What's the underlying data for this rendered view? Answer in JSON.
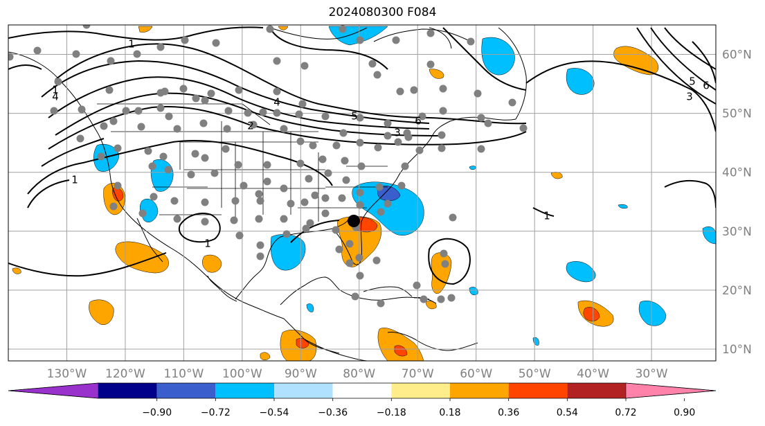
{
  "title": "2024080300 F084",
  "map": {
    "lon_range": [
      -140,
      -19
    ],
    "lat_range": [
      8,
      65
    ],
    "lon_ticks": [
      {
        "lon": -130,
        "label": "130°W"
      },
      {
        "lon": -120,
        "label": "120°W"
      },
      {
        "lon": -110,
        "label": "110°W"
      },
      {
        "lon": -100,
        "label": "100°W"
      },
      {
        "lon": -90,
        "label": "90°W"
      },
      {
        "lon": -80,
        "label": "80°W"
      },
      {
        "lon": -70,
        "label": "70°W"
      },
      {
        "lon": -60,
        "label": "60°W"
      },
      {
        "lon": -50,
        "label": "50°W"
      },
      {
        "lon": -40,
        "label": "40°W"
      },
      {
        "lon": -30,
        "label": "30°W"
      }
    ],
    "lat_ticks": [
      {
        "lat": 60,
        "label": "60°N"
      },
      {
        "lat": 50,
        "label": "50°N"
      },
      {
        "lat": 40,
        "label": "40°N"
      },
      {
        "lat": 30,
        "label": "30°N"
      },
      {
        "lat": 20,
        "label": "20°N"
      },
      {
        "lat": 10,
        "label": "10°N"
      }
    ],
    "gridlines": true
  },
  "colorbar": {
    "colors": [
      "#9932cc",
      "#00008b",
      "#3a5fcd",
      "#00bfff",
      "#b0e2ff",
      "#ffffff",
      "#ffec8b",
      "#ffa500",
      "#ff4500",
      "#b22222",
      "#ff82ab"
    ],
    "ticks": [
      "−0.90",
      "−0.72",
      "−0.54",
      "−0.36",
      "−0.18",
      "0.18",
      "0.36",
      "0.54",
      "0.72",
      "0.90"
    ]
  },
  "contour_labels": [
    "1",
    "1",
    "1",
    "1",
    "2",
    "3",
    "3",
    "4",
    "4",
    "5",
    "5",
    "6",
    "6",
    "1"
  ],
  "filled_colors": {
    "orange": "#ffa500",
    "red": "#ff4500",
    "blue": "#00bfff",
    "darkblue": "#3a5fcd"
  },
  "marker_colors": {
    "station": "#808080",
    "center": "#000000"
  }
}
